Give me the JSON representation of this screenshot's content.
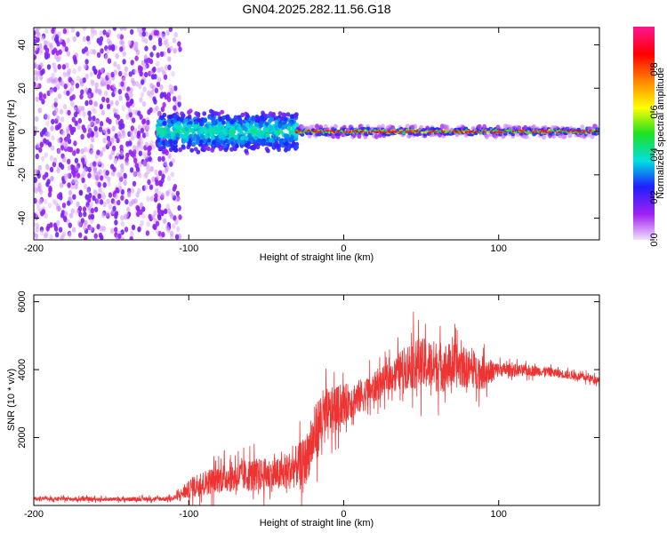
{
  "title": "GN04.2025.282.11.56.G18",
  "chart_data": [
    {
      "type": "heatmap",
      "xlabel": "Height of straight line (km)",
      "ylabel": "Frequency (Hz)",
      "xlim": [
        -200,
        165
      ],
      "ylim": [
        -50,
        48
      ],
      "xticks": [
        -200,
        -100,
        0,
        100
      ],
      "yticks": [
        -40,
        -20,
        0,
        20,
        40
      ],
      "colorbar": {
        "label": "Normalized spectral amplitude",
        "range": [
          0,
          1
        ],
        "ticks": [
          0.0,
          0.2,
          0.4,
          0.6,
          0.8
        ],
        "colors": [
          "#f0e0ff",
          "#a020f0",
          "#2020ff",
          "#00e0e0",
          "#20e020",
          "#ffff00",
          "#ff8000",
          "#ff0000",
          "#ff1493"
        ]
      },
      "features": [
        {
          "x_range": [
            -200,
            -105
          ],
          "freq_range": [
            -50,
            48
          ],
          "amplitude": 0.05,
          "description": "noise"
        },
        {
          "x_range": [
            -120,
            -30
          ],
          "freq_range": [
            -10,
            10
          ],
          "amplitude": 0.25
        },
        {
          "x_range": [
            -30,
            165
          ],
          "freq_range": [
            -2,
            2
          ],
          "amplitude": 0.9
        }
      ]
    },
    {
      "type": "line",
      "xlabel": "Height of straight line (km)",
      "ylabel": "SNR (10 * v/v)",
      "xlim": [
        -200,
        165
      ],
      "ylim": [
        0,
        6200
      ],
      "xticks": [
        -200,
        -100,
        0,
        100
      ],
      "yticks": [
        2000,
        4000,
        6000
      ],
      "color": "#ee3333",
      "series": [
        {
          "name": "SNR",
          "x": [
            -200,
            -150,
            -110,
            -95,
            -80,
            -60,
            -40,
            -25,
            -15,
            0,
            15,
            30,
            45,
            60,
            75,
            90,
            100,
            130,
            165
          ],
          "y": [
            200,
            180,
            200,
            600,
            800,
            900,
            900,
            1300,
            2500,
            3000,
            3300,
            3800,
            4200,
            4100,
            4100,
            3900,
            4000,
            3950,
            3700
          ],
          "amp": [
            80,
            80,
            100,
            500,
            600,
            700,
            700,
            1000,
            1300,
            800,
            700,
            600,
            1100,
            1100,
            900,
            700,
            300,
            200,
            150
          ]
        }
      ]
    }
  ]
}
